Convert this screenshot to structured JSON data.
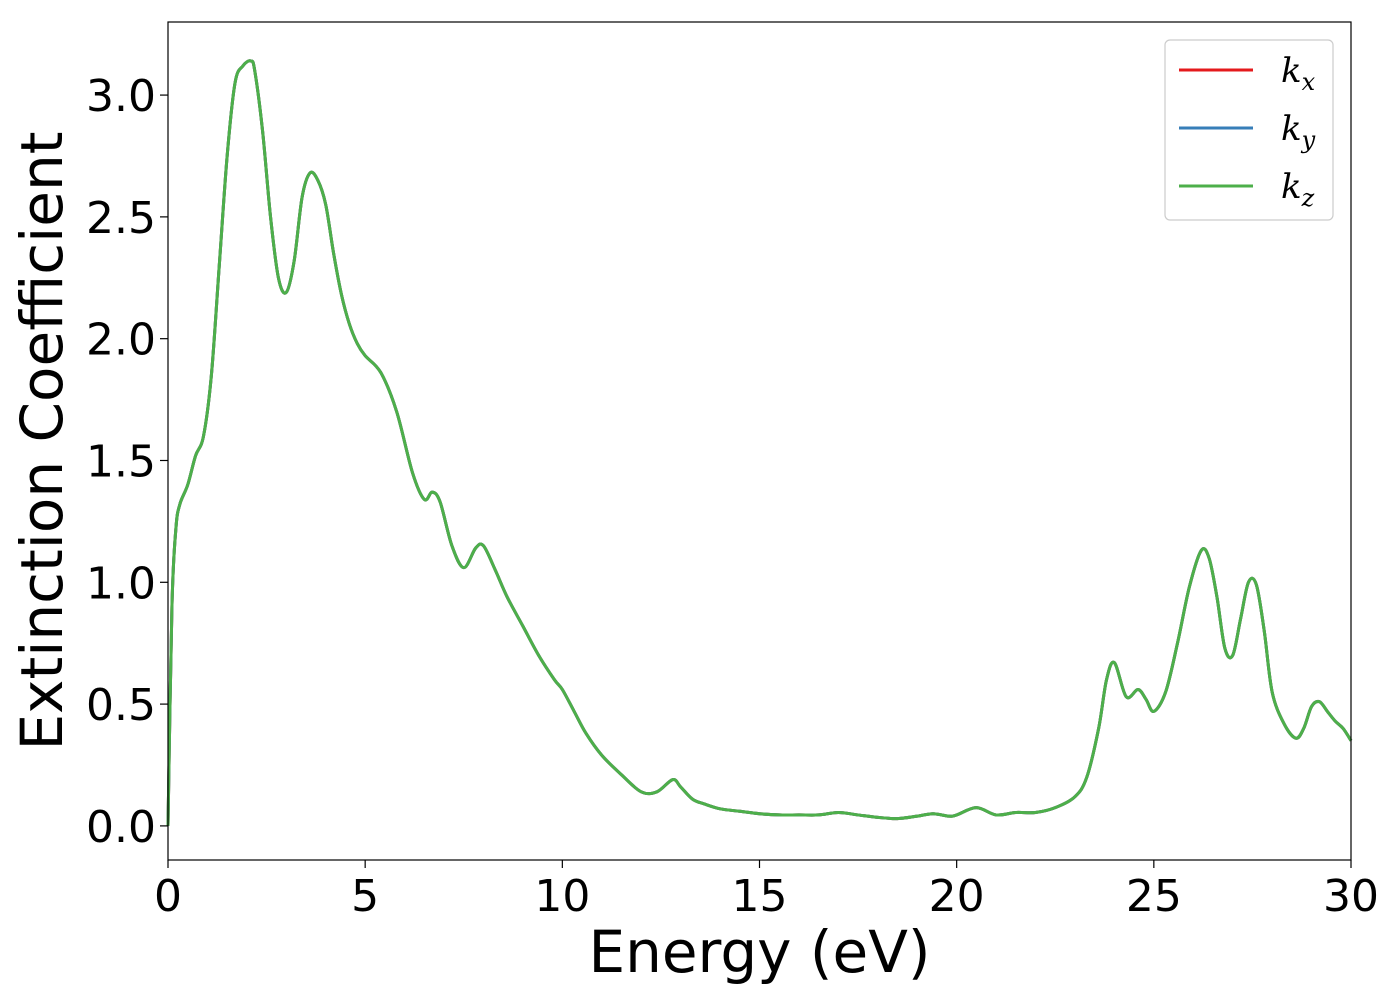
{
  "chart_data": {
    "type": "line",
    "title": "",
    "xlabel": "Energy (eV)",
    "ylabel": "Extinction Coefficient",
    "xlim": [
      0,
      30
    ],
    "ylim": [
      -0.14,
      3.3
    ],
    "xticks": [
      0,
      5,
      10,
      15,
      20,
      25,
      30
    ],
    "xtick_labels": [
      "0",
      "5",
      "10",
      "15",
      "20",
      "25",
      "30"
    ],
    "yticks": [
      0.0,
      0.5,
      1.0,
      1.5,
      2.0,
      2.5,
      3.0
    ],
    "ytick_labels": [
      "0.0",
      "0.5",
      "1.0",
      "1.5",
      "2.0",
      "2.5",
      "3.0"
    ],
    "grid": false,
    "legend_position": "top-right",
    "x": [
      0,
      0.1,
      0.2,
      0.3,
      0.5,
      0.7,
      0.9,
      1.1,
      1.3,
      1.5,
      1.7,
      1.9,
      2.1,
      2.2,
      2.4,
      2.6,
      2.8,
      3.0,
      3.2,
      3.4,
      3.6,
      3.8,
      4.0,
      4.2,
      4.4,
      4.6,
      4.8,
      5.0,
      5.4,
      5.8,
      6.2,
      6.5,
      6.7,
      6.9,
      7.2,
      7.5,
      7.8,
      8.0,
      8.3,
      8.6,
      9.0,
      9.4,
      9.8,
      10.0,
      10.3,
      10.6,
      11.0,
      11.5,
      12.0,
      12.4,
      12.8,
      13.0,
      13.3,
      13.6,
      14.0,
      14.5,
      15.0,
      15.5,
      16.0,
      16.5,
      17.0,
      17.5,
      18.0,
      18.5,
      19.0,
      19.4,
      19.8,
      20.0,
      20.5,
      21.0,
      21.5,
      22.0,
      22.5,
      23.0,
      23.3,
      23.6,
      23.8,
      24.0,
      24.3,
      24.6,
      24.8,
      25.0,
      25.3,
      25.6,
      25.9,
      26.2,
      26.4,
      26.6,
      26.8,
      27.0,
      27.2,
      27.4,
      27.6,
      27.8,
      28.0,
      28.3,
      28.6,
      28.8,
      29.0,
      29.2,
      29.4,
      29.6,
      29.8,
      30.0
    ],
    "series": [
      {
        "name": "k_x",
        "label_base": "k",
        "label_sub": "x",
        "color": "#e41a1c",
        "values": [
          0.0,
          0.9,
          1.22,
          1.32,
          1.4,
          1.52,
          1.6,
          1.85,
          2.3,
          2.75,
          3.05,
          3.12,
          3.14,
          3.1,
          2.85,
          2.5,
          2.25,
          2.19,
          2.32,
          2.58,
          2.68,
          2.65,
          2.55,
          2.35,
          2.18,
          2.06,
          1.98,
          1.93,
          1.86,
          1.7,
          1.45,
          1.34,
          1.37,
          1.33,
          1.15,
          1.06,
          1.14,
          1.15,
          1.05,
          0.94,
          0.82,
          0.7,
          0.6,
          0.56,
          0.47,
          0.38,
          0.29,
          0.21,
          0.14,
          0.14,
          0.19,
          0.16,
          0.11,
          0.09,
          0.07,
          0.06,
          0.05,
          0.045,
          0.045,
          0.045,
          0.055,
          0.045,
          0.035,
          0.03,
          0.04,
          0.05,
          0.04,
          0.045,
          0.075,
          0.045,
          0.055,
          0.055,
          0.075,
          0.12,
          0.2,
          0.4,
          0.6,
          0.67,
          0.53,
          0.56,
          0.52,
          0.47,
          0.55,
          0.75,
          0.98,
          1.13,
          1.1,
          0.94,
          0.73,
          0.7,
          0.85,
          1.0,
          0.99,
          0.8,
          0.55,
          0.42,
          0.36,
          0.4,
          0.49,
          0.51,
          0.47,
          0.43,
          0.4,
          0.35
        ]
      },
      {
        "name": "k_y",
        "label_base": "k",
        "label_sub": "y",
        "color": "#377eb8",
        "values": [
          0.0,
          0.9,
          1.22,
          1.32,
          1.4,
          1.52,
          1.6,
          1.85,
          2.3,
          2.75,
          3.05,
          3.12,
          3.14,
          3.1,
          2.85,
          2.5,
          2.25,
          2.19,
          2.32,
          2.58,
          2.68,
          2.65,
          2.55,
          2.35,
          2.18,
          2.06,
          1.98,
          1.93,
          1.86,
          1.7,
          1.45,
          1.34,
          1.37,
          1.33,
          1.15,
          1.06,
          1.14,
          1.15,
          1.05,
          0.94,
          0.82,
          0.7,
          0.6,
          0.56,
          0.47,
          0.38,
          0.29,
          0.21,
          0.14,
          0.14,
          0.19,
          0.16,
          0.11,
          0.09,
          0.07,
          0.06,
          0.05,
          0.045,
          0.045,
          0.045,
          0.055,
          0.045,
          0.035,
          0.03,
          0.04,
          0.05,
          0.04,
          0.045,
          0.075,
          0.045,
          0.055,
          0.055,
          0.075,
          0.12,
          0.2,
          0.4,
          0.6,
          0.67,
          0.53,
          0.56,
          0.52,
          0.47,
          0.55,
          0.75,
          0.98,
          1.13,
          1.1,
          0.94,
          0.73,
          0.7,
          0.85,
          1.0,
          0.99,
          0.8,
          0.55,
          0.42,
          0.36,
          0.4,
          0.49,
          0.51,
          0.47,
          0.43,
          0.4,
          0.35
        ]
      },
      {
        "name": "k_z",
        "label_base": "k",
        "label_sub": "z",
        "color": "#4daf4a",
        "values": [
          0.0,
          0.9,
          1.22,
          1.32,
          1.4,
          1.52,
          1.6,
          1.85,
          2.3,
          2.75,
          3.05,
          3.12,
          3.14,
          3.1,
          2.85,
          2.5,
          2.25,
          2.19,
          2.32,
          2.58,
          2.68,
          2.65,
          2.55,
          2.35,
          2.18,
          2.06,
          1.98,
          1.93,
          1.86,
          1.7,
          1.45,
          1.34,
          1.37,
          1.33,
          1.15,
          1.06,
          1.14,
          1.15,
          1.05,
          0.94,
          0.82,
          0.7,
          0.6,
          0.56,
          0.47,
          0.38,
          0.29,
          0.21,
          0.14,
          0.14,
          0.19,
          0.16,
          0.11,
          0.09,
          0.07,
          0.06,
          0.05,
          0.045,
          0.045,
          0.045,
          0.055,
          0.045,
          0.035,
          0.03,
          0.04,
          0.05,
          0.04,
          0.045,
          0.075,
          0.045,
          0.055,
          0.055,
          0.075,
          0.12,
          0.2,
          0.4,
          0.6,
          0.67,
          0.53,
          0.56,
          0.52,
          0.47,
          0.55,
          0.75,
          0.98,
          1.13,
          1.1,
          0.94,
          0.73,
          0.7,
          0.85,
          1.0,
          0.99,
          0.8,
          0.55,
          0.42,
          0.36,
          0.4,
          0.49,
          0.51,
          0.47,
          0.43,
          0.4,
          0.35
        ]
      }
    ]
  }
}
